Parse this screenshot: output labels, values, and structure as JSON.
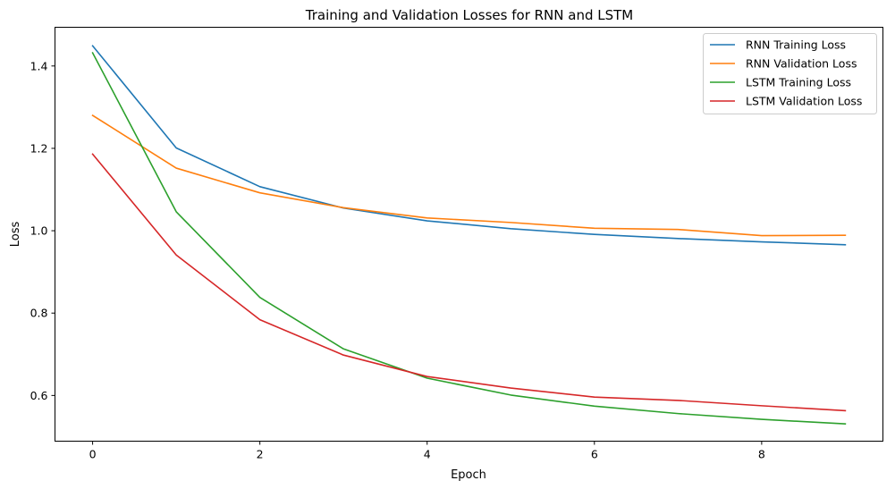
{
  "chart_data": {
    "type": "line",
    "title": "Training and Validation Losses for RNN and LSTM",
    "xlabel": "Epoch",
    "ylabel": "Loss",
    "xlim": [
      -0.45,
      9.45
    ],
    "ylim": [
      0.489,
      1.494
    ],
    "xticks": [
      0,
      2,
      4,
      6,
      8
    ],
    "yticks": [
      0.6,
      0.8,
      1.0,
      1.2,
      1.4
    ],
    "xtick_labels": [
      "0",
      "2",
      "4",
      "6",
      "8"
    ],
    "ytick_labels": [
      "0.6",
      "0.8",
      "1.0",
      "1.2",
      "1.4"
    ],
    "grid": false,
    "legend_position": "top-right",
    "x": [
      0,
      1,
      2,
      3,
      4,
      5,
      6,
      7,
      8,
      9
    ],
    "series": [
      {
        "name": "RNN Training Loss",
        "color": "#1f77b4",
        "values": [
          1.449,
          1.201,
          1.107,
          1.055,
          1.024,
          1.005,
          0.991,
          0.981,
          0.973,
          0.966
        ]
      },
      {
        "name": "RNN Validation Loss",
        "color": "#ff7f0e",
        "values": [
          1.28,
          1.152,
          1.092,
          1.056,
          1.031,
          1.02,
          1.006,
          1.003,
          0.988,
          0.989
        ]
      },
      {
        "name": "LSTM Training Loss",
        "color": "#2ca02c",
        "values": [
          1.432,
          1.046,
          0.838,
          0.713,
          0.642,
          0.601,
          0.574,
          0.556,
          0.542,
          0.531
        ]
      },
      {
        "name": "LSTM Validation Loss",
        "color": "#d62728",
        "values": [
          1.186,
          0.941,
          0.784,
          0.698,
          0.646,
          0.618,
          0.596,
          0.588,
          0.575,
          0.563
        ]
      }
    ]
  }
}
